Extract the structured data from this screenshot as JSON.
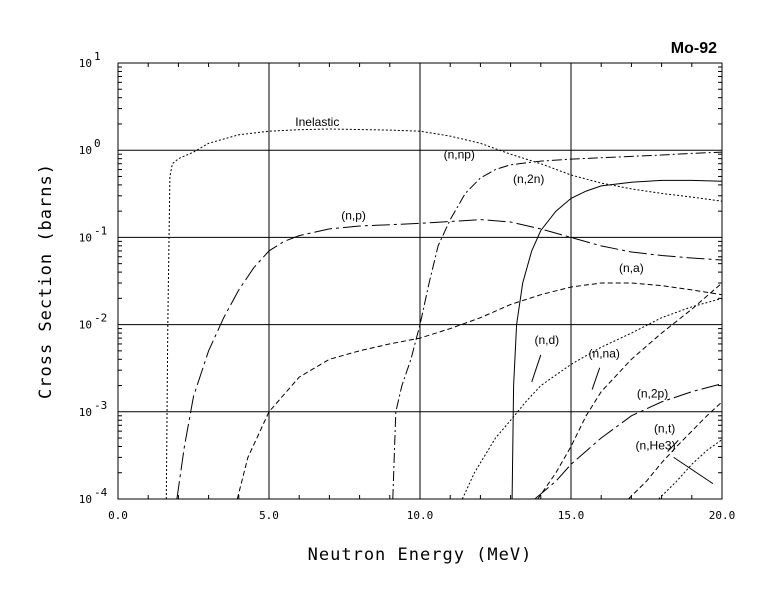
{
  "chart_data": {
    "type": "line",
    "title": "Mo-92",
    "xlabel": "Neutron Energy (MeV)",
    "ylabel": "Cross Section (barns)",
    "xscale": "linear",
    "yscale": "log",
    "xlim": [
      0,
      20
    ],
    "ylim": [
      0.0001,
      10
    ],
    "grid": true,
    "x_ticks": [
      0,
      5,
      10,
      15,
      20
    ],
    "x_tick_labels": [
      "0.0",
      "5.0",
      "10.0",
      "15.0",
      "20.0"
    ],
    "y_ticks": [
      {
        "value": 0.0001,
        "base": "10",
        "exp": "-4"
      },
      {
        "value": 0.001,
        "base": "10",
        "exp": "-3"
      },
      {
        "value": 0.01,
        "base": "10",
        "exp": "-2"
      },
      {
        "value": 0.1,
        "base": "10",
        "exp": "-1"
      },
      {
        "value": 1,
        "base": "10",
        "exp": "0"
      },
      {
        "value": 10,
        "base": "10",
        "exp": "1"
      }
    ],
    "series": [
      {
        "name": "Inelastic",
        "dash": "2,2",
        "label": {
          "x": 6.6,
          "y": 1.9
        },
        "points": [
          [
            1.6,
            0.0001
          ],
          [
            1.65,
            0.01
          ],
          [
            1.72,
            0.5
          ],
          [
            1.8,
            0.7
          ],
          [
            2.0,
            0.8
          ],
          [
            2.5,
            0.95
          ],
          [
            3.0,
            1.2
          ],
          [
            4.0,
            1.5
          ],
          [
            5.0,
            1.65
          ],
          [
            6.0,
            1.72
          ],
          [
            7.0,
            1.75
          ],
          [
            9.0,
            1.7
          ],
          [
            10.0,
            1.65
          ],
          [
            11.0,
            1.45
          ],
          [
            12.0,
            1.2
          ],
          [
            13.0,
            0.9
          ],
          [
            14.0,
            0.7
          ],
          [
            15.0,
            0.52
          ],
          [
            16.0,
            0.42
          ],
          [
            17.0,
            0.36
          ],
          [
            18.0,
            0.32
          ],
          [
            19.0,
            0.29
          ],
          [
            20.0,
            0.26
          ]
        ]
      },
      {
        "name": "(n,p)",
        "dash": "18,4,3,4",
        "label": {
          "x": 7.8,
          "y": 0.16
        },
        "points": [
          [
            1.95,
            0.0001
          ],
          [
            2.2,
            0.0004
          ],
          [
            2.5,
            0.0015
          ],
          [
            3.0,
            0.005
          ],
          [
            3.5,
            0.012
          ],
          [
            4.0,
            0.025
          ],
          [
            4.5,
            0.045
          ],
          [
            5.0,
            0.07
          ],
          [
            5.5,
            0.09
          ],
          [
            6.0,
            0.105
          ],
          [
            7.0,
            0.125
          ],
          [
            8.0,
            0.135
          ],
          [
            9.0,
            0.14
          ],
          [
            10.0,
            0.145
          ],
          [
            11.0,
            0.152
          ],
          [
            12.0,
            0.16
          ],
          [
            13.0,
            0.15
          ],
          [
            14.0,
            0.125
          ],
          [
            15.0,
            0.1
          ],
          [
            16.0,
            0.08
          ],
          [
            17.0,
            0.068
          ],
          [
            18.0,
            0.062
          ],
          [
            19.0,
            0.058
          ],
          [
            20.0,
            0.055
          ]
        ]
      },
      {
        "name": "(n,np)",
        "dash": "10,3,2,3",
        "label": {
          "x": 11.3,
          "y": 0.8
        },
        "points": [
          [
            9.1,
            0.0001
          ],
          [
            9.2,
            0.001
          ],
          [
            9.4,
            0.002
          ],
          [
            9.7,
            0.004
          ],
          [
            10.0,
            0.01
          ],
          [
            10.3,
            0.03
          ],
          [
            10.6,
            0.08
          ],
          [
            11.0,
            0.16
          ],
          [
            11.5,
            0.32
          ],
          [
            12.0,
            0.48
          ],
          [
            12.5,
            0.6
          ],
          [
            13.0,
            0.68
          ],
          [
            14.0,
            0.75
          ],
          [
            15.0,
            0.79
          ],
          [
            16.0,
            0.82
          ],
          [
            17.0,
            0.85
          ],
          [
            18.0,
            0.88
          ],
          [
            19.0,
            0.92
          ],
          [
            20.0,
            0.95
          ]
        ]
      },
      {
        "name": "(n,2n)",
        "dash": "",
        "label": {
          "x": 13.6,
          "y": 0.42
        },
        "points": [
          [
            13.05,
            0.0001
          ],
          [
            13.1,
            0.002
          ],
          [
            13.2,
            0.01
          ],
          [
            13.4,
            0.03
          ],
          [
            13.7,
            0.07
          ],
          [
            14.0,
            0.12
          ],
          [
            14.5,
            0.2
          ],
          [
            15.0,
            0.28
          ],
          [
            15.5,
            0.34
          ],
          [
            16.0,
            0.39
          ],
          [
            17.0,
            0.43
          ],
          [
            18.0,
            0.45
          ],
          [
            19.0,
            0.45
          ],
          [
            20.0,
            0.44
          ]
        ]
      },
      {
        "name": "(n,a)",
        "dash": "5,3",
        "label": {
          "x": 17.0,
          "y": 0.04
        },
        "points": [
          [
            3.95,
            0.0001
          ],
          [
            4.3,
            0.0003
          ],
          [
            5.0,
            0.001
          ],
          [
            6.0,
            0.0025
          ],
          [
            7.0,
            0.004
          ],
          [
            8.0,
            0.005
          ],
          [
            9.0,
            0.006
          ],
          [
            10.0,
            0.007
          ],
          [
            11.0,
            0.009
          ],
          [
            12.0,
            0.012
          ],
          [
            13.0,
            0.017
          ],
          [
            14.0,
            0.022
          ],
          [
            15.0,
            0.027
          ],
          [
            16.0,
            0.03
          ],
          [
            17.0,
            0.03
          ],
          [
            18.0,
            0.028
          ],
          [
            19.0,
            0.025
          ],
          [
            20.0,
            0.022
          ]
        ]
      },
      {
        "name": "(n,d)",
        "dash": "2,2",
        "label": {
          "x": 14.2,
          "y": 0.006
        },
        "leader": [
          [
            14.0,
            0.0045
          ],
          [
            13.7,
            0.0022
          ]
        ],
        "points": [
          [
            11.4,
            0.0001
          ],
          [
            11.8,
            0.0002
          ],
          [
            12.5,
            0.0005
          ],
          [
            13.0,
            0.0008
          ],
          [
            13.5,
            0.0013
          ],
          [
            14.0,
            0.002
          ],
          [
            15.0,
            0.0035
          ],
          [
            16.0,
            0.0055
          ],
          [
            17.0,
            0.008
          ],
          [
            18.0,
            0.012
          ],
          [
            19.0,
            0.016
          ],
          [
            20.0,
            0.02
          ]
        ]
      },
      {
        "name": "(n,na)",
        "dash": "5,3",
        "label": {
          "x": 16.1,
          "y": 0.0042
        },
        "leader": [
          [
            15.95,
            0.0032
          ],
          [
            15.7,
            0.0018
          ]
        ],
        "points": [
          [
            13.9,
            0.0001
          ],
          [
            14.5,
            0.0002
          ],
          [
            15.0,
            0.0004
          ],
          [
            15.5,
            0.0009
          ],
          [
            16.0,
            0.0017
          ],
          [
            17.0,
            0.004
          ],
          [
            18.0,
            0.008
          ],
          [
            19.0,
            0.015
          ],
          [
            20.0,
            0.03
          ]
        ]
      },
      {
        "name": "(n,2p)",
        "dash": "18,4,3,4",
        "label": {
          "x": 17.7,
          "y": 0.00145
        },
        "points": [
          [
            13.8,
            0.0001
          ],
          [
            14.5,
            0.00016
          ],
          [
            15.0,
            0.00025
          ],
          [
            16.0,
            0.0005
          ],
          [
            17.0,
            0.0009
          ],
          [
            18.0,
            0.0013
          ],
          [
            19.0,
            0.0017
          ],
          [
            20.0,
            0.0021
          ]
        ]
      },
      {
        "name": "(n,t)",
        "dash": "5,3",
        "label": {
          "x": 18.1,
          "y": 0.00058
        },
        "leader": [
          [
            18.55,
            0.00047
          ],
          [
            18.2,
            0.00035
          ]
        ],
        "points": [
          [
            16.9,
            0.0001
          ],
          [
            17.5,
            0.00016
          ],
          [
            18.0,
            0.00026
          ],
          [
            18.5,
            0.0004
          ],
          [
            19.0,
            0.0006
          ],
          [
            19.5,
            0.0009
          ],
          [
            20.0,
            0.0013
          ]
        ]
      },
      {
        "name": "(n,He3)",
        "dash": "2,2",
        "label": {
          "x": 17.8,
          "y": 0.00037
        },
        "leader": [
          [
            18.4,
            0.0003
          ],
          [
            19.7,
            0.00015
          ]
        ],
        "points": [
          [
            17.9,
            0.0001
          ],
          [
            18.5,
            0.00016
          ],
          [
            19.0,
            0.00025
          ],
          [
            19.5,
            0.00036
          ],
          [
            20.0,
            0.00048
          ]
        ]
      }
    ]
  }
}
